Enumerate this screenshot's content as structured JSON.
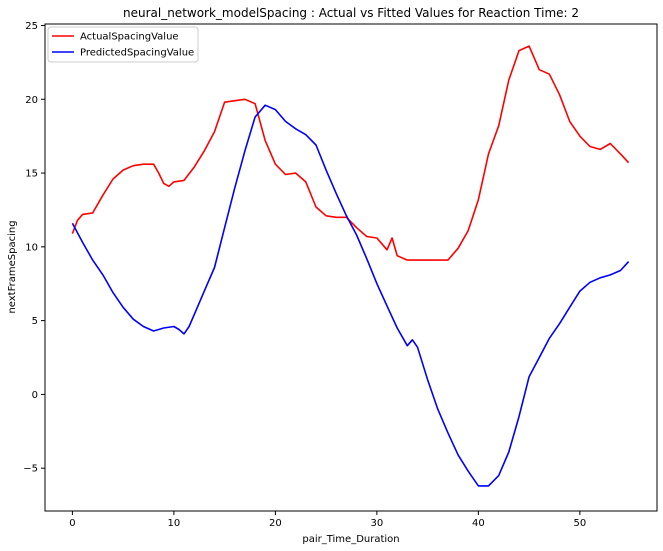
{
  "chart_data": {
    "type": "line",
    "title": "neural_network_modelSpacing : Actual vs Fitted Values for Reaction Time: 2",
    "xlabel": "pair_Time_Duration",
    "ylabel": "nextFrameSpacing",
    "xlim": [
      -2.7,
      57.6
    ],
    "ylim": [
      -7.9,
      25.1
    ],
    "xticks": [
      0,
      10,
      20,
      30,
      40,
      50
    ],
    "yticks": [
      -5,
      0,
      5,
      10,
      15,
      20,
      25
    ],
    "grid": false,
    "legend_position": "top-left",
    "series": [
      {
        "name": "ActualSpacingValue",
        "color": "#ff0000",
        "x": [
          0,
          0.5,
          1,
          2,
          3,
          4,
          5,
          6,
          7,
          8,
          8.5,
          9,
          9.5,
          10,
          11,
          12,
          13,
          14,
          15,
          16,
          17,
          18,
          19,
          20,
          21,
          22,
          23,
          24,
          25,
          26,
          27,
          28,
          29,
          30,
          31,
          31.5,
          32,
          33,
          34,
          35,
          36,
          37,
          38,
          39,
          40,
          41,
          42,
          43,
          44,
          45,
          46,
          47,
          48,
          49,
          50,
          51,
          52,
          53,
          54,
          54.8
        ],
        "values": [
          10.9,
          11.8,
          12.2,
          12.3,
          13.5,
          14.6,
          15.2,
          15.5,
          15.6,
          15.6,
          15.0,
          14.3,
          14.1,
          14.4,
          14.5,
          15.4,
          16.5,
          17.8,
          19.8,
          19.9,
          20.0,
          19.7,
          17.2,
          15.6,
          14.9,
          15.0,
          14.4,
          12.7,
          12.1,
          12.0,
          12.0,
          11.3,
          10.7,
          10.6,
          9.8,
          10.6,
          9.4,
          9.1,
          9.1,
          9.1,
          9.1,
          9.1,
          9.9,
          11.1,
          13.2,
          16.3,
          18.2,
          21.3,
          23.3,
          23.6,
          22.0,
          21.7,
          20.3,
          18.5,
          17.5,
          16.8,
          16.6,
          17.0,
          16.3,
          15.7
        ]
      },
      {
        "name": "PredictedSpacingValue",
        "color": "#0000ff",
        "x": [
          0,
          1,
          2,
          3,
          4,
          5,
          6,
          7,
          8,
          9,
          10,
          10.5,
          11,
          11.5,
          12,
          13,
          14,
          15,
          16,
          17,
          18,
          19,
          20,
          21,
          22,
          23,
          24,
          25,
          26,
          27,
          28,
          29,
          30,
          31,
          32,
          33,
          33.5,
          34,
          35,
          36,
          37,
          38,
          39,
          40,
          41,
          42,
          43,
          44,
          45,
          46,
          47,
          48,
          49,
          50,
          51,
          52,
          53,
          54,
          54.8
        ],
        "values": [
          11.6,
          10.3,
          9.1,
          8.1,
          6.9,
          5.9,
          5.1,
          4.6,
          4.3,
          4.5,
          4.6,
          4.4,
          4.1,
          4.6,
          5.4,
          7.0,
          8.6,
          11.3,
          14.0,
          16.5,
          18.8,
          19.6,
          19.3,
          18.5,
          18.0,
          17.6,
          16.9,
          15.2,
          13.6,
          12.1,
          10.8,
          9.2,
          7.5,
          6.0,
          4.5,
          3.3,
          3.7,
          3.2,
          1.0,
          -1.0,
          -2.6,
          -4.1,
          -5.2,
          -6.2,
          -6.2,
          -5.5,
          -3.9,
          -1.5,
          1.2,
          2.5,
          3.8,
          4.8,
          5.9,
          7.0,
          7.6,
          7.9,
          8.1,
          8.4,
          9.0
        ]
      }
    ]
  }
}
